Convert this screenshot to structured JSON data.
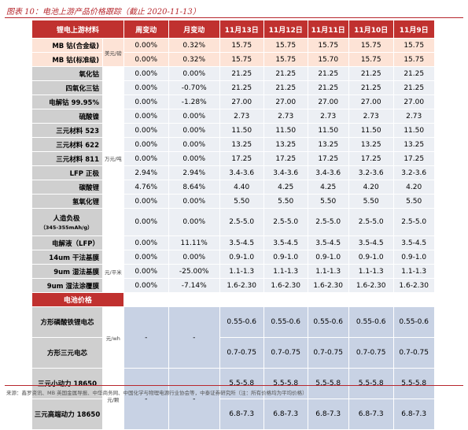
{
  "title": "图表 10：电池上游产品价格跟踪（截止 2020-11-13）",
  "headers": [
    "锂电上游材料",
    "",
    "周变动",
    "月变动",
    "11月13日",
    "11月12日",
    "11月11日",
    "11月10日",
    "11月9日"
  ],
  "units": {
    "u1": "美元/磅",
    "u2": "万元/吨",
    "u3": "元/平米",
    "u4": "元/wh",
    "u5": "元/颗"
  },
  "rows": [
    {
      "name": "MB 钴(合金级)",
      "wk": "0.00%",
      "mo": "0.32%",
      "d13": "15.75",
      "d12": "15.75",
      "d11": "15.75",
      "d10": "15.75",
      "d9": "15.75"
    },
    {
      "name": "MB 钴(标准级)",
      "wk": "0.00%",
      "mo": "0.32%",
      "d13": "15.75",
      "d12": "15.75",
      "d11": "15.70",
      "d10": "15.75",
      "d9": "15.75"
    },
    {
      "name": "氧化钴",
      "wk": "0.00%",
      "mo": "0.00%",
      "d13": "21.25",
      "d12": "21.25",
      "d11": "21.25",
      "d10": "21.25",
      "d9": "21.25"
    },
    {
      "name": "四氧化三钴",
      "wk": "0.00%",
      "mo": "-0.70%",
      "d13": "21.25",
      "d12": "21.25",
      "d11": "21.25",
      "d10": "21.25",
      "d9": "21.25"
    },
    {
      "name": "电解钴 99.95%",
      "wk": "0.00%",
      "mo": "-1.28%",
      "d13": "27.00",
      "d12": "27.00",
      "d11": "27.00",
      "d10": "27.00",
      "d9": "27.00"
    },
    {
      "name": "硫酸镍",
      "wk": "0.00%",
      "mo": "0.00%",
      "d13": "2.73",
      "d12": "2.73",
      "d11": "2.73",
      "d10": "2.73",
      "d9": "2.73"
    },
    {
      "name": "三元材料 523",
      "wk": "0.00%",
      "mo": "0.00%",
      "d13": "11.50",
      "d12": "11.50",
      "d11": "11.50",
      "d10": "11.50",
      "d9": "11.50"
    },
    {
      "name": "三元材料 622",
      "wk": "0.00%",
      "mo": "0.00%",
      "d13": "13.25",
      "d12": "13.25",
      "d11": "13.25",
      "d10": "13.25",
      "d9": "13.25"
    },
    {
      "name": "三元材料 811",
      "wk": "0.00%",
      "mo": "0.00%",
      "d13": "17.25",
      "d12": "17.25",
      "d11": "17.25",
      "d10": "17.25",
      "d9": "17.25"
    },
    {
      "name": "LFP 正极",
      "wk": "2.94%",
      "mo": "2.94%",
      "d13": "3.4-3.6",
      "d12": "3.4-3.6",
      "d11": "3.4-3.6",
      "d10": "3.2-3.6",
      "d9": "3.2-3.6"
    },
    {
      "name": "碳酸锂",
      "wk": "4.76%",
      "mo": "8.64%",
      "d13": "4.40",
      "d12": "4.25",
      "d11": "4.25",
      "d10": "4.20",
      "d9": "4.20"
    },
    {
      "name": "氢氧化锂",
      "wk": "0.00%",
      "mo": "0.00%",
      "d13": "5.50",
      "d12": "5.50",
      "d11": "5.50",
      "d10": "5.50",
      "d9": "5.50"
    },
    {
      "name": "人造负极",
      "name2": "（345-355mAh/g）",
      "wk": "0.00%",
      "mo": "0.00%",
      "d13": "2.5-5.0",
      "d12": "2.5-5.0",
      "d11": "2.5-5.0",
      "d10": "2.5-5.0",
      "d9": "2.5-5.0"
    },
    {
      "name": "电解液（LFP）",
      "wk": "0.00%",
      "mo": "11.11%",
      "d13": "3.5-4.5",
      "d12": "3.5-4.5",
      "d11": "3.5-4.5",
      "d10": "3.5-4.5",
      "d9": "3.5-4.5"
    },
    {
      "name": "14um 干法基膜",
      "wk": "0.00%",
      "mo": "0.00%",
      "d13": "0.9-1.0",
      "d12": "0.9-1.0",
      "d11": "0.9-1.0",
      "d10": "0.9-1.0",
      "d9": "0.9-1.0"
    },
    {
      "name": "9um 湿法基膜",
      "wk": "0.00%",
      "mo": "-25.00%",
      "d13": "1.1-1.3",
      "d12": "1.1-1.3",
      "d11": "1.1-1.3",
      "d10": "1.1-1.3",
      "d9": "1.1-1.3"
    },
    {
      "name": "9um 湿法涂覆膜",
      "wk": "0.00%",
      "mo": "-7.14%",
      "d13": "1.6-2.30",
      "d12": "1.6-2.30",
      "d11": "1.6-2.30",
      "d10": "1.6-2.30",
      "d9": "1.6-2.30"
    }
  ],
  "section": "电池价格",
  "battery": [
    {
      "name": "方形磷酸铁锂电芯",
      "v": "0.55-0.6"
    },
    {
      "name": "方形三元电芯",
      "v": "0.7-0.75"
    },
    {
      "name": "三元小动力 18650",
      "v": "5.5-5.8"
    },
    {
      "name": "三元高端动力 18650",
      "v": "6.8-7.3"
    }
  ],
  "dash": "-",
  "footer": "来源：鑫罗资讯、MB 英国金属导报、中华商务网、中国化学与物理电源行业协会等，中泰证券研究所（注：所有价格均为平均价格）",
  "colors": {
    "accent": "#c0312f",
    "up": "#d1221f",
    "down": "#1f9a3a"
  }
}
